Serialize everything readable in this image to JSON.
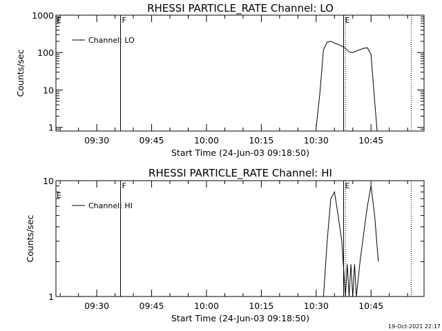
{
  "chart_data": [
    {
      "type": "line",
      "title": "RHESSI PARTICLE_RATE Channel: LO",
      "xlabel": "Start Time (24-Jun-03 09:18:50)",
      "ylabel": "Counts/sec",
      "yscale": "log",
      "ylim": [
        0.8,
        1000
      ],
      "xlim": [
        "09:18:50",
        "10:59:30"
      ],
      "x_ticks": [
        "09:30",
        "09:45",
        "10:00",
        "10:15",
        "10:30",
        "10:45"
      ],
      "y_ticks": [
        "1",
        "10",
        "100",
        "1000"
      ],
      "legend": "Channel: LO",
      "legend_position": "top-left",
      "markers": [
        {
          "time": "09:36:30",
          "style": "solid",
          "label": "F"
        },
        {
          "time": "10:37:30",
          "style": "solid",
          "label": "E"
        },
        {
          "time": "10:38:00",
          "style": "dotted",
          "label": ""
        },
        {
          "time": "10:56:00",
          "style": "dotted",
          "label": ""
        }
      ],
      "edge_flag": "E",
      "series": [
        {
          "name": "Channel: LO",
          "x": [
            "10:30:00",
            "10:31:00",
            "10:32:00",
            "10:33:00",
            "10:34:00",
            "10:35:00",
            "10:36:00",
            "10:37:00",
            "10:38:00",
            "10:39:00",
            "10:40:00",
            "10:41:00",
            "10:42:00",
            "10:43:00",
            "10:44:00",
            "10:45:00",
            "10:46:00",
            "10:46:40"
          ],
          "y": [
            1,
            8,
            120,
            190,
            200,
            180,
            165,
            150,
            130,
            105,
            100,
            110,
            120,
            130,
            135,
            90,
            5,
            0.8
          ]
        }
      ]
    },
    {
      "type": "line",
      "title": "RHESSI PARTICLE_RATE Channel: HI",
      "xlabel": "Start Time (24-Jun-03 09:18:50)",
      "ylabel": "Counts/sec",
      "yscale": "log",
      "ylim": [
        1,
        10
      ],
      "xlim": [
        "09:18:50",
        "10:59:30"
      ],
      "x_ticks": [
        "09:30",
        "09:45",
        "10:00",
        "10:15",
        "10:30",
        "10:45"
      ],
      "y_ticks": [
        "1",
        "10"
      ],
      "legend": "Channel: HI",
      "legend_position": "top-left",
      "markers": [
        {
          "time": "09:36:30",
          "style": "solid",
          "label": "F"
        },
        {
          "time": "10:37:30",
          "style": "solid",
          "label": "E"
        },
        {
          "time": "10:38:00",
          "style": "dotted",
          "label": ""
        },
        {
          "time": "10:56:00",
          "style": "dotted",
          "label": ""
        }
      ],
      "edge_flag": "E",
      "series": [
        {
          "name": "Channel: HI",
          "x": [
            "10:32:00",
            "10:33:00",
            "10:34:00",
            "10:35:00",
            "10:36:00",
            "10:37:00",
            "10:38:00",
            "10:38:30",
            "10:39:00",
            "10:39:30",
            "10:40:00",
            "10:40:30",
            "10:41:00",
            "10:42:00",
            "10:43:00",
            "10:44:00",
            "10:45:00",
            "10:46:00",
            "10:47:00"
          ],
          "y": [
            1,
            3,
            7,
            8,
            5,
            3,
            1,
            1.9,
            1,
            1.9,
            1,
            1.9,
            1,
            2,
            3.5,
            6,
            9,
            5,
            2
          ]
        }
      ]
    }
  ],
  "timestamp": "19-Oct-2021 22:17"
}
